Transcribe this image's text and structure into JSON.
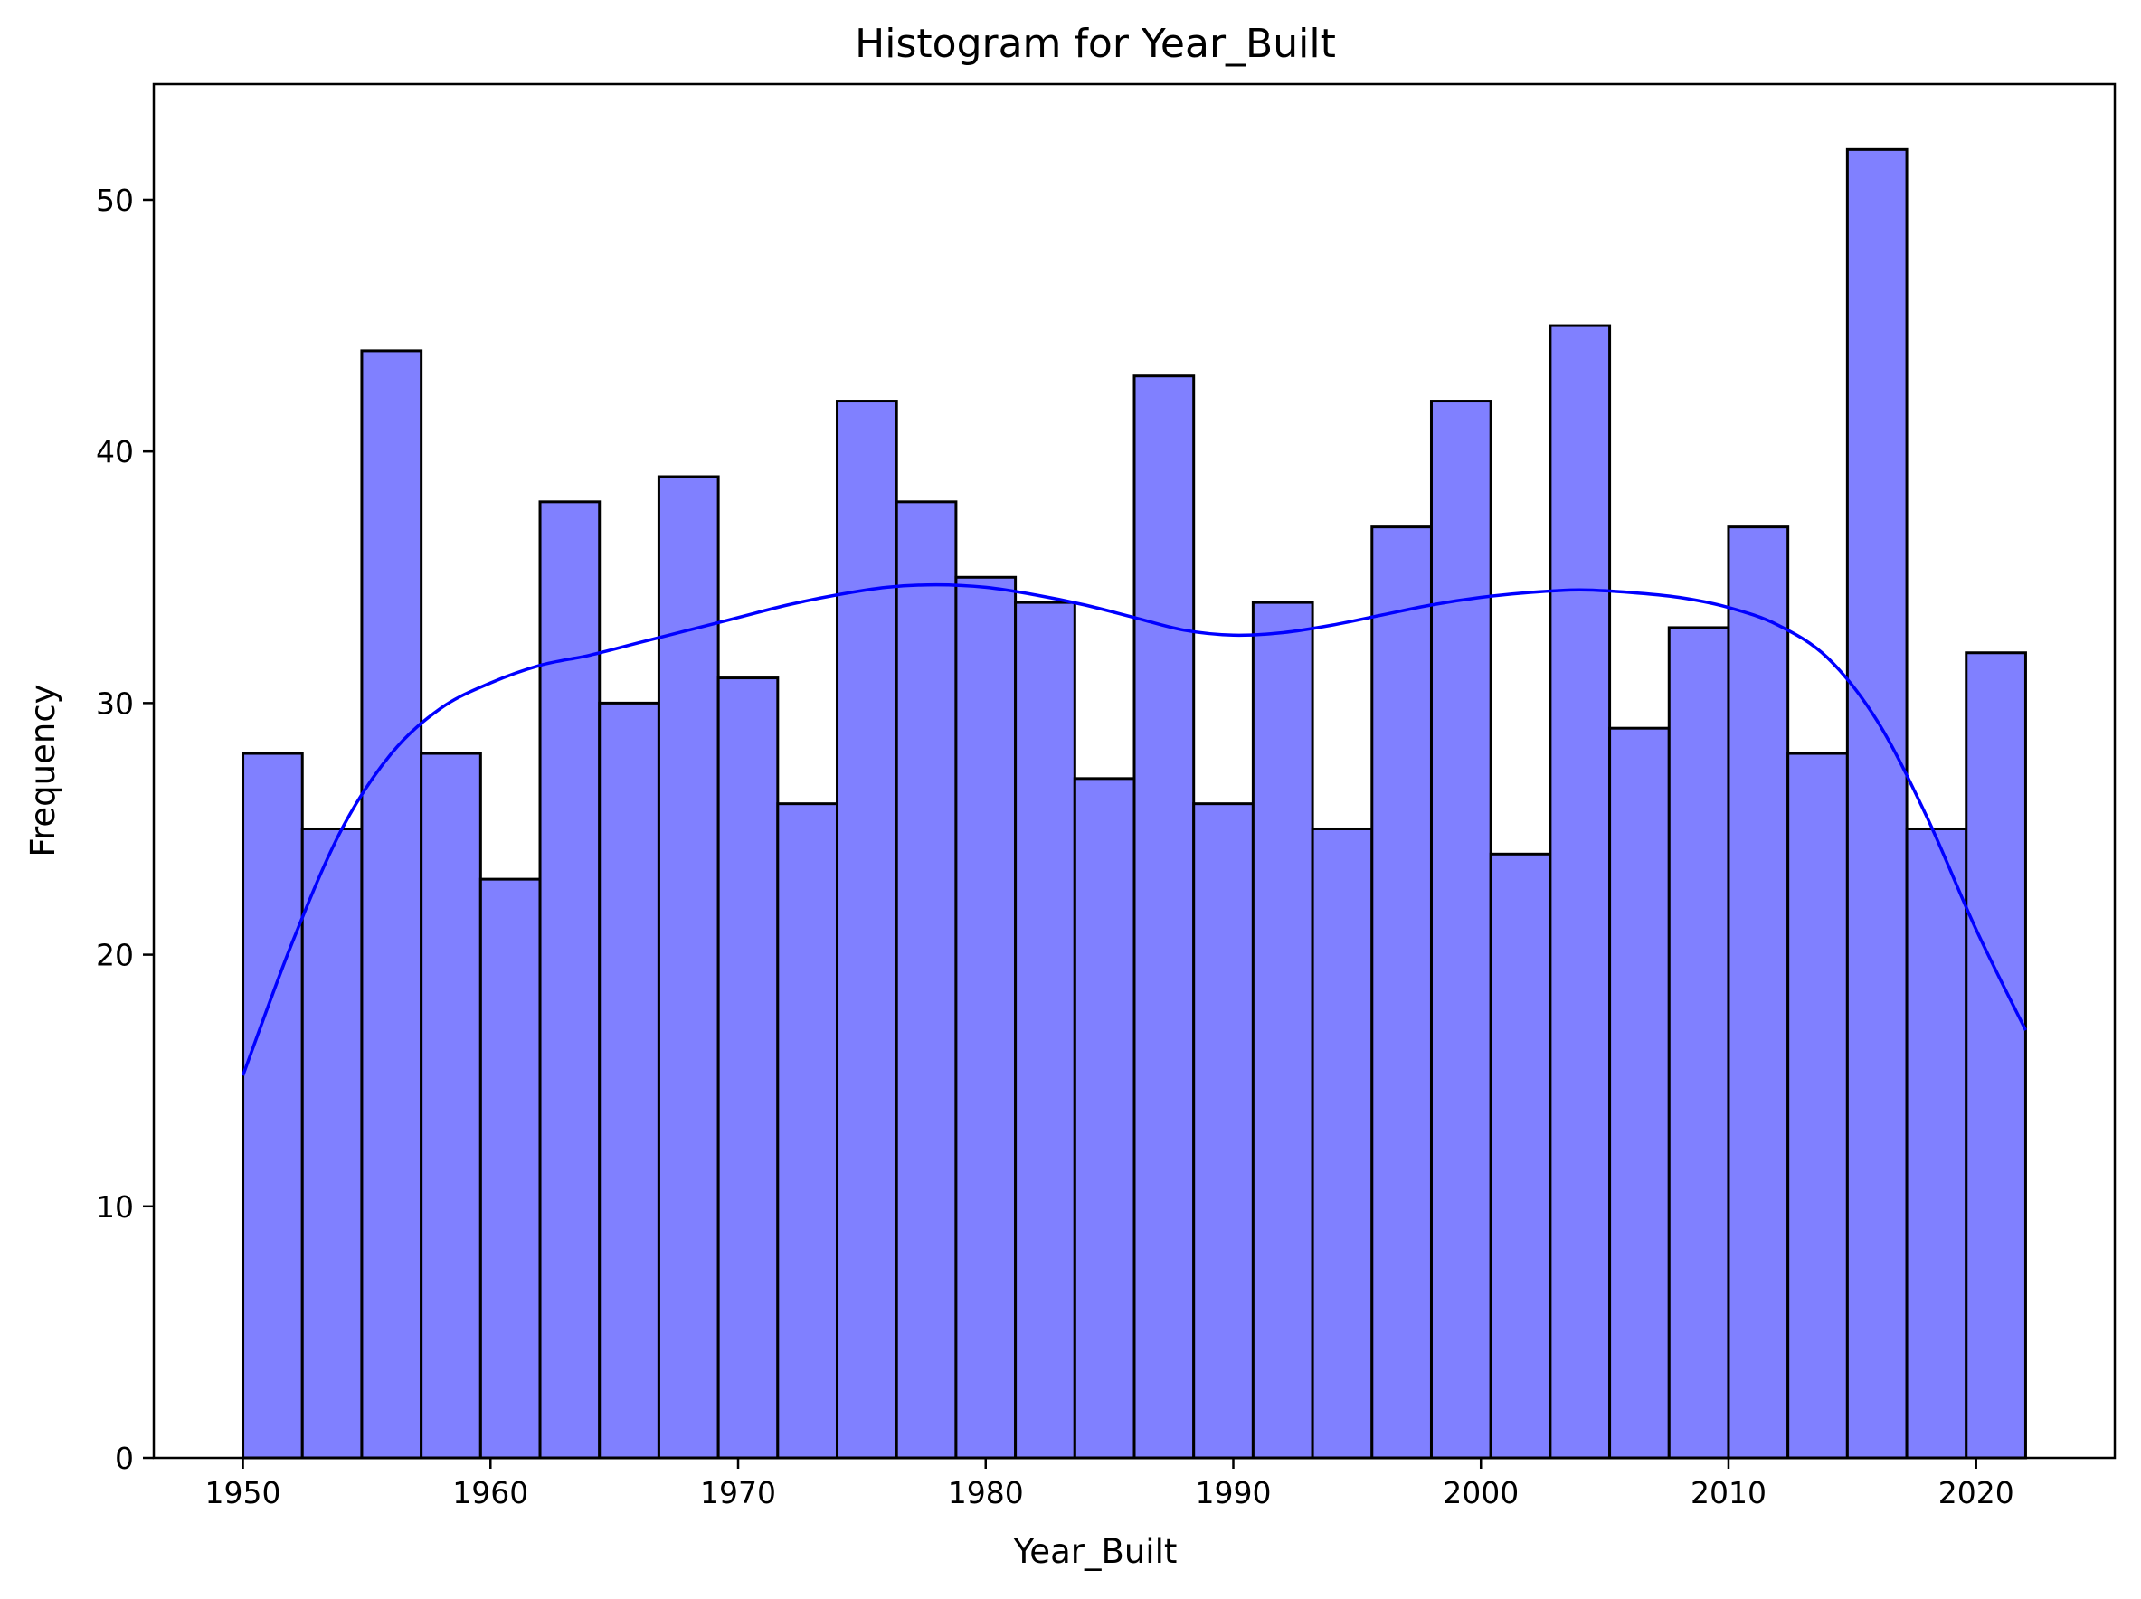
{
  "chart_data": {
    "type": "bar",
    "title": "Histogram for Year_Built",
    "xlabel": "Year_Built",
    "ylabel": "Frequency",
    "xlim": [
      1946.4,
      2025.6
    ],
    "ylim": [
      0,
      54.6
    ],
    "xticks": [
      1950,
      1960,
      1970,
      1980,
      1990,
      2000,
      2010,
      2020
    ],
    "yticks": [
      0,
      10,
      20,
      30,
      40,
      50
    ],
    "bin_start": 1950,
    "bin_end": 2022,
    "counts": [
      28,
      25,
      44,
      28,
      23,
      38,
      30,
      39,
      31,
      26,
      42,
      38,
      35,
      34,
      27,
      43,
      26,
      34,
      25,
      37,
      42,
      24,
      45,
      29,
      33,
      37,
      28,
      52,
      25,
      32
    ],
    "kde": {
      "x": [
        1950,
        1952,
        1954,
        1956,
        1958,
        1960,
        1962,
        1964,
        1966,
        1968,
        1970,
        1972,
        1974,
        1976,
        1978,
        1980,
        1982,
        1984,
        1986,
        1988,
        1990,
        1992,
        1994,
        1996,
        1998,
        2000,
        2002,
        2004,
        2006,
        2008,
        2010,
        2012,
        2014,
        2016,
        2018,
        2020,
        2022
      ],
      "y": [
        15.2,
        20.5,
        25.0,
        28.0,
        29.8,
        30.8,
        31.5,
        31.9,
        32.4,
        32.9,
        33.4,
        33.9,
        34.3,
        34.6,
        34.7,
        34.6,
        34.3,
        33.9,
        33.4,
        32.9,
        32.7,
        32.8,
        33.1,
        33.5,
        33.9,
        34.2,
        34.4,
        34.5,
        34.4,
        34.2,
        33.8,
        33.1,
        31.8,
        29.3,
        25.5,
        21.0,
        17.0
      ]
    },
    "colors": {
      "bar_fill": "#8080ff",
      "bar_edge": "#000000",
      "kde_line": "#0000ff"
    },
    "legend": "none",
    "grid": false
  }
}
